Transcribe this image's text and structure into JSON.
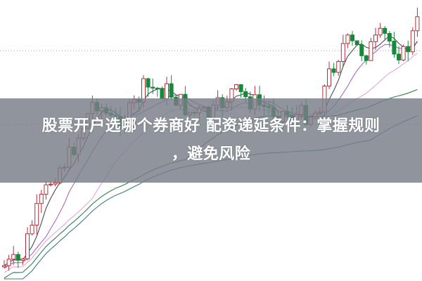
{
  "article": {
    "title_line1": "股票开户选哪个券商好 配资递延条件：掌握规则",
    "title_line2": "，避免风险"
  },
  "background": {
    "type": "candlestick chart image",
    "colors": {
      "up": "#b0303a",
      "down": "#17883c",
      "ma_dark": "#4a4a55",
      "ma_purple": "#a66bbd",
      "ma_pink": "#e7a6d8",
      "ma_green": "#2f7d4c",
      "ma_teal": "#3d7b7e",
      "banner": "#7e848c"
    }
  }
}
